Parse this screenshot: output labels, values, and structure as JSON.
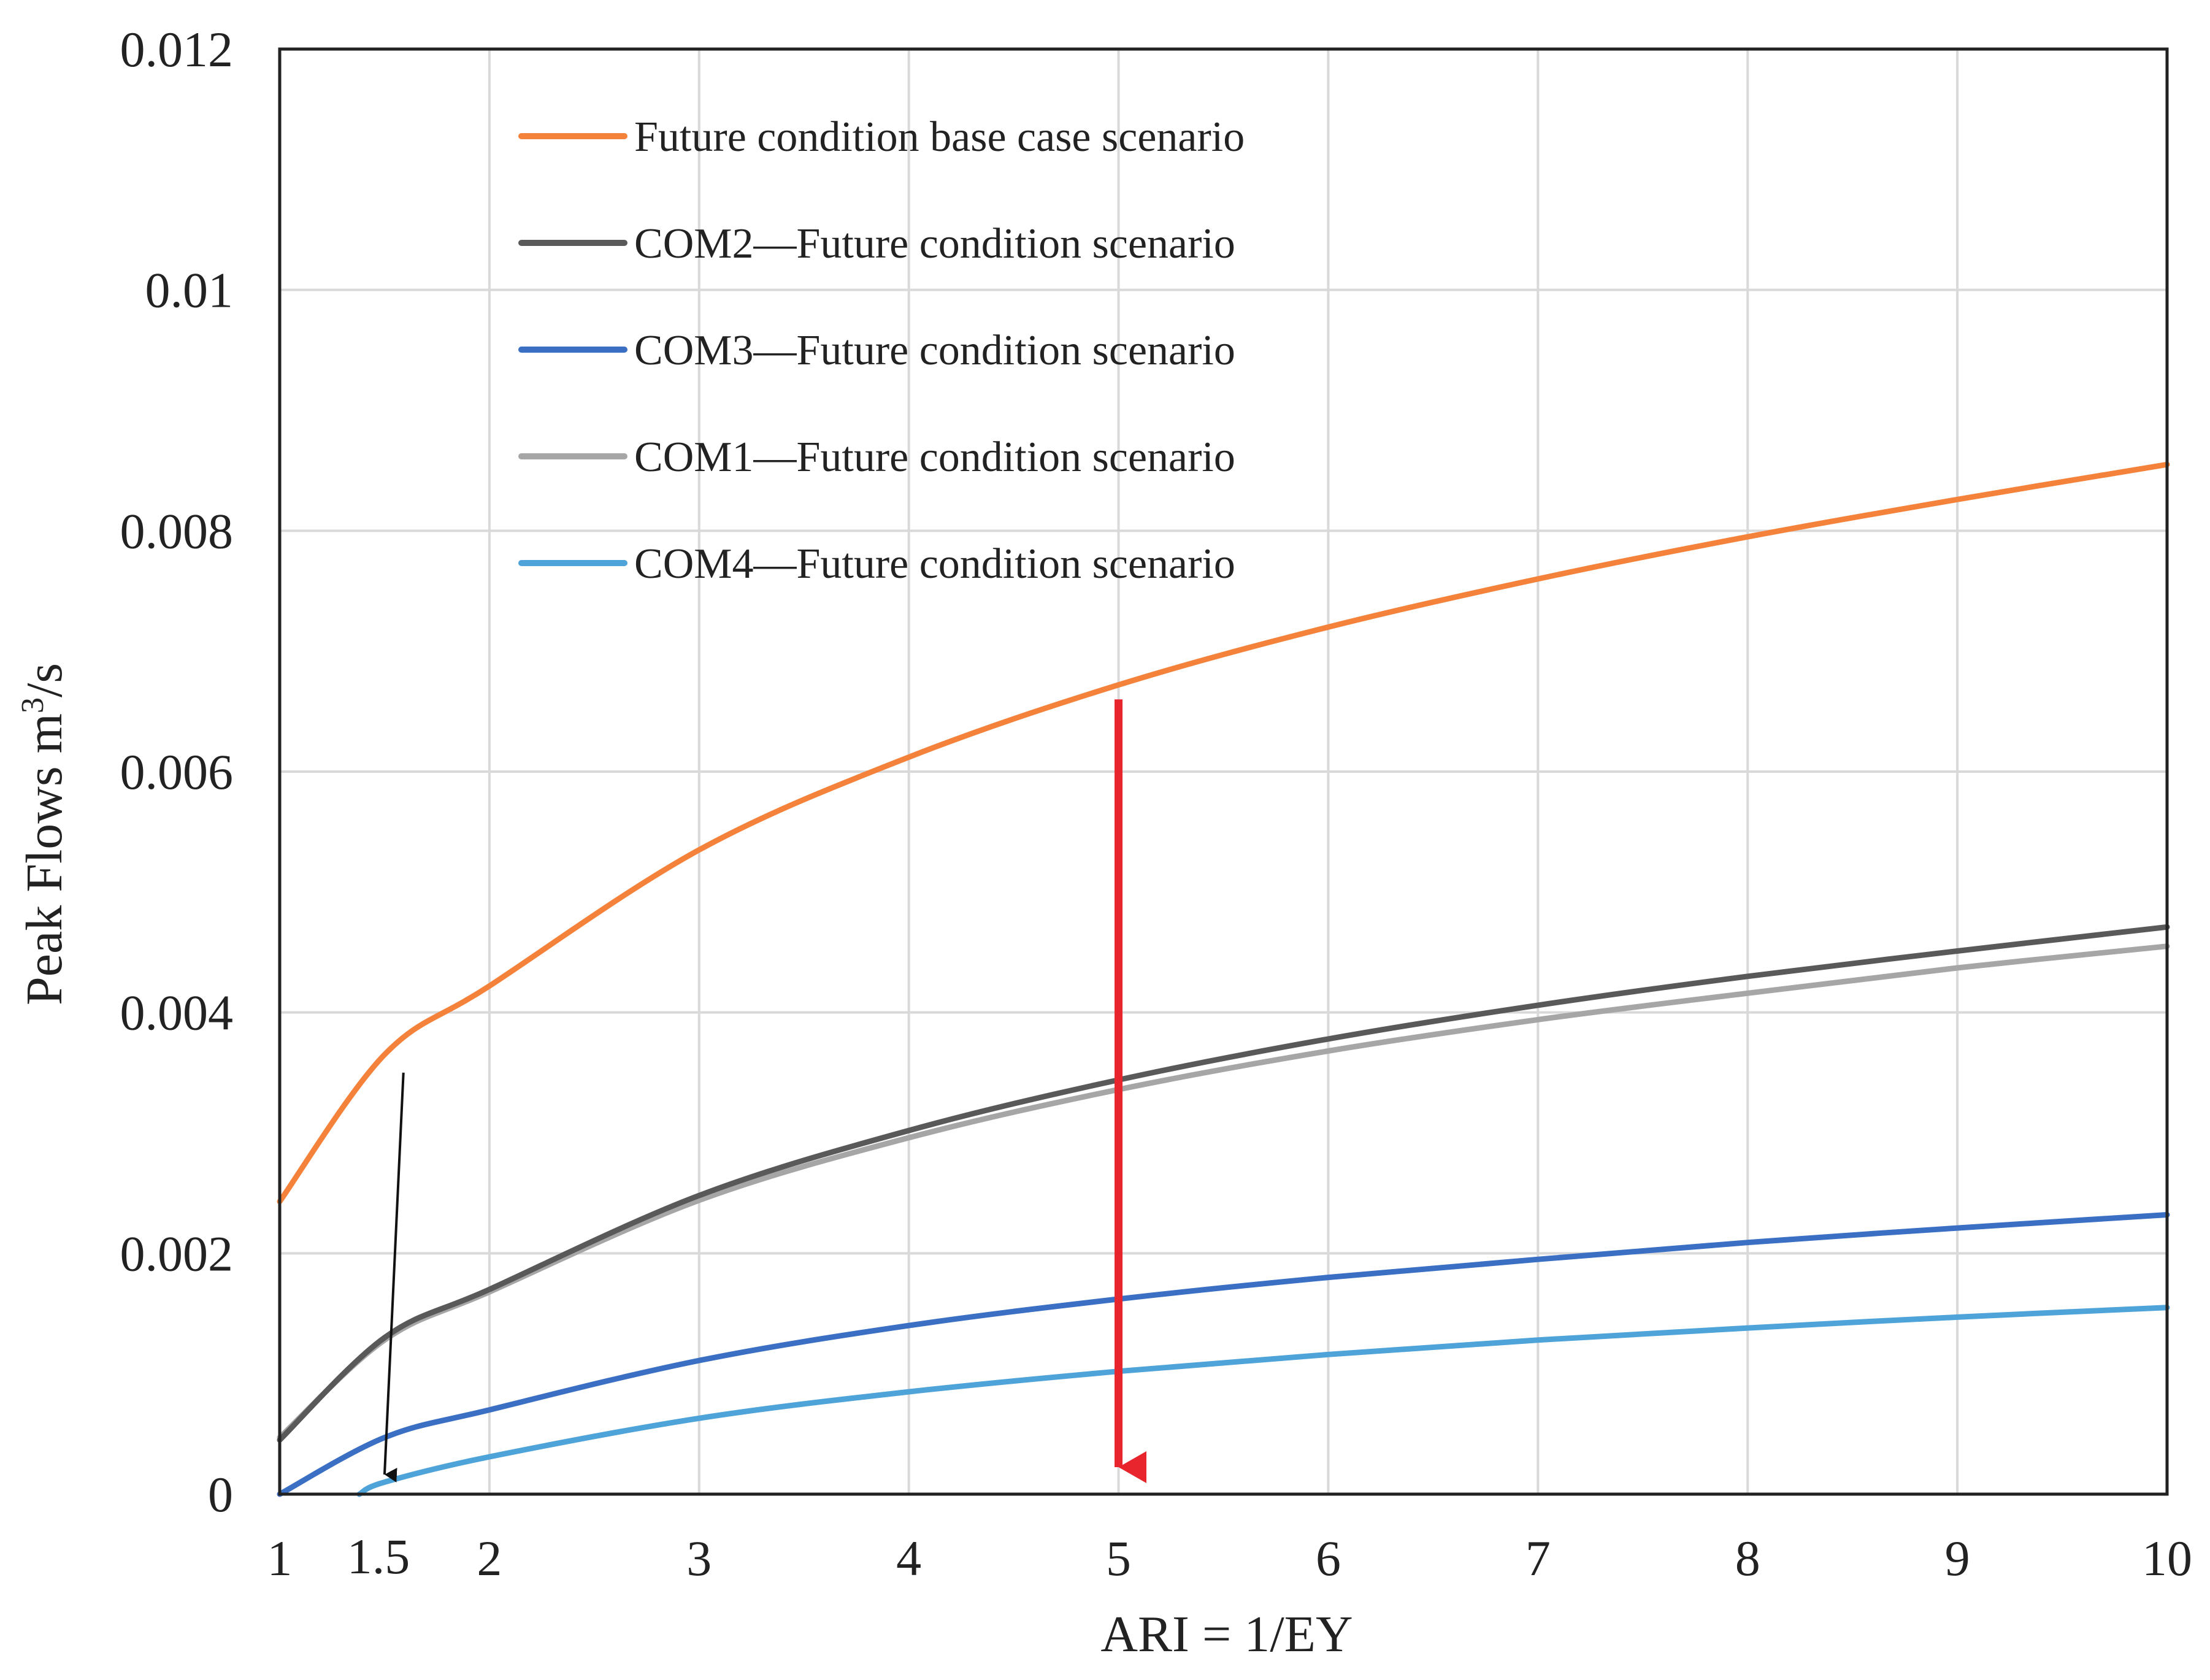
{
  "chart_data": {
    "type": "line",
    "title": "",
    "xlabel": "ARI = 1/EY",
    "ylabel_main": "Peak Flows m",
    "ylabel_sup": "3",
    "ylabel_tail": "/s",
    "xlim": [
      1,
      10
    ],
    "ylim": [
      0,
      0.012
    ],
    "grid": true,
    "legend_position": "top-left",
    "x_ticks": [
      1,
      2,
      3,
      4,
      5,
      6,
      7,
      8,
      9,
      10
    ],
    "x_tick_labels": [
      "1",
      "2",
      "3",
      "4",
      "5",
      "6",
      "7",
      "8",
      "9",
      "10"
    ],
    "y_ticks": [
      0,
      0.002,
      0.004,
      0.006,
      0.008,
      0.01,
      0.012
    ],
    "y_tick_labels": [
      "0",
      "0.002",
      "0.004",
      "0.006",
      "0.008",
      "0.01",
      "0.012"
    ],
    "x": [
      1,
      1.5,
      2,
      3,
      4,
      5,
      6,
      7,
      8,
      9,
      10
    ],
    "series": [
      {
        "name": "Future condition base case scenario",
        "color": "#f4823a",
        "values": [
          0.00243,
          0.00365,
          0.00422,
          0.00535,
          0.00612,
          0.00672,
          0.0072,
          0.0076,
          0.00795,
          0.00826,
          0.00855
        ]
      },
      {
        "name": "COM2—Future condition scenario",
        "color": "#595959",
        "values": [
          0.00045,
          0.0013,
          0.0017,
          0.00248,
          0.00302,
          0.00344,
          0.00378,
          0.00406,
          0.0043,
          0.00451,
          0.00471
        ]
      },
      {
        "name": "COM3—Future condition scenario",
        "color": "#3a6fc4",
        "values": [
          0.0,
          0.00047,
          0.0007,
          0.00111,
          0.0014,
          0.00162,
          0.0018,
          0.00195,
          0.00209,
          0.00221,
          0.00232
        ]
      },
      {
        "name": "COM1—Future condition scenario",
        "color": "#a6a6a6",
        "values": [
          0.00047,
          0.00128,
          0.00168,
          0.00244,
          0.00296,
          0.00336,
          0.00368,
          0.00394,
          0.00416,
          0.00437,
          0.00455
        ]
      },
      {
        "name": "COM4—Future condition scenario",
        "color": "#4ea3d9",
        "values": [
          null,
          0.0001,
          0.00031,
          0.00063,
          0.00085,
          0.00102,
          0.00116,
          0.00128,
          0.00138,
          0.00147,
          0.00155
        ]
      }
    ],
    "legend_entries": [
      {
        "name": "Future condition base case scenario",
        "color": "#f4823a"
      },
      {
        "name": "COM2—Future condition scenario",
        "color": "#595959"
      },
      {
        "name": "COM3—Future condition scenario",
        "color": "#3a6fc4"
      },
      {
        "name": "COM1—Future condition scenario",
        "color": "#a6a6a6"
      },
      {
        "name": "COM4—Future condition scenario",
        "color": "#4ea3d9"
      }
    ],
    "annotations": [
      {
        "label": "1.5",
        "x": 1.5,
        "y_top": 0.0035,
        "y_bottom": 0.0,
        "color": "#111111"
      },
      {
        "label": "",
        "x": 5,
        "y_top": 0.0066,
        "y_bottom": 0.0,
        "color": "#e8252c"
      }
    ]
  }
}
